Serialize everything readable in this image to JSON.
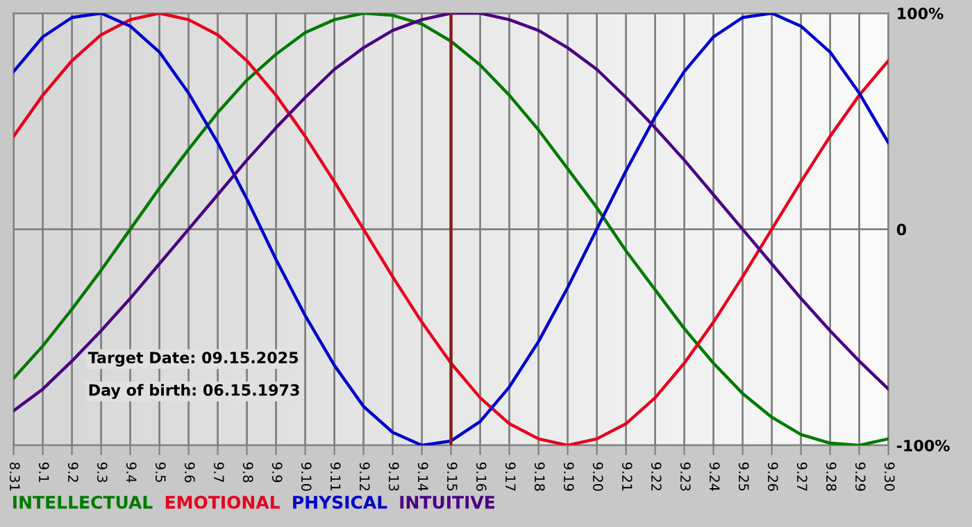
{
  "chart_data": {
    "type": "line",
    "categories": [
      "8.31",
      "9.1",
      "9.2",
      "9.3",
      "9.4",
      "9.5",
      "9.6",
      "9.7",
      "9.8",
      "9.9",
      "9.10",
      "9.11",
      "9.12",
      "9.13",
      "9.14",
      "9.15",
      "9.16",
      "9.17",
      "9.18",
      "9.19",
      "9.20",
      "9.21",
      "9.22",
      "9.23",
      "9.24",
      "9.25",
      "9.26",
      "9.27",
      "9.28",
      "9.29",
      "9.30"
    ],
    "series": [
      {
        "name": "INTELLECTUAL",
        "color": "#007a00",
        "values": [
          -69,
          -54,
          -37,
          -19,
          0,
          19,
          37,
          54,
          69,
          81,
          91,
          97,
          100,
          99,
          95,
          87,
          76,
          62,
          46,
          28,
          10,
          -10,
          -28,
          -46,
          -62,
          -76,
          -87,
          -95,
          -99,
          -100,
          -97
        ]
      },
      {
        "name": "EMOTIONAL",
        "color": "#e8001c",
        "values": [
          43,
          62,
          78,
          90,
          97,
          100,
          97,
          90,
          78,
          62,
          43,
          22,
          0,
          -22,
          -43,
          -62,
          -78,
          -90,
          -97,
          -100,
          -97,
          -90,
          -78,
          -62,
          -43,
          -22,
          0,
          22,
          43,
          62,
          78
        ]
      },
      {
        "name": "PHYSICAL",
        "color": "#0000cc",
        "values": [
          73,
          89,
          98,
          100,
          94,
          82,
          63,
          40,
          14,
          -14,
          -40,
          -63,
          -82,
          -94,
          -100,
          -98,
          -89,
          -73,
          -52,
          -27,
          0,
          27,
          52,
          73,
          89,
          98,
          100,
          94,
          82,
          63,
          40
        ]
      },
      {
        "name": "INTUITIVE",
        "color": "#4b0082",
        "values": [
          -84,
          -74,
          -61,
          -47,
          -32,
          -16,
          0,
          16,
          32,
          47,
          61,
          74,
          84,
          92,
          97,
          100,
          100,
          97,
          92,
          84,
          74,
          61,
          47,
          32,
          16,
          0,
          -16,
          -32,
          -47,
          -61,
          -74
        ]
      }
    ],
    "ylim": [
      -100,
      100
    ],
    "yticks": [
      {
        "value": 100,
        "label": "100%"
      },
      0,
      {
        "value": -100,
        "label": "-100%"
      }
    ],
    "ref_lines": [
      {
        "axis": "x",
        "value": "9.15",
        "color": "#8b1a1a"
      }
    ],
    "annotations": [
      "Target Date: 09.15.2025",
      "Day of birth: 06.15.1973"
    ],
    "grid": true,
    "legend": "bottom",
    "marker": "none",
    "line_style": "solid"
  }
}
